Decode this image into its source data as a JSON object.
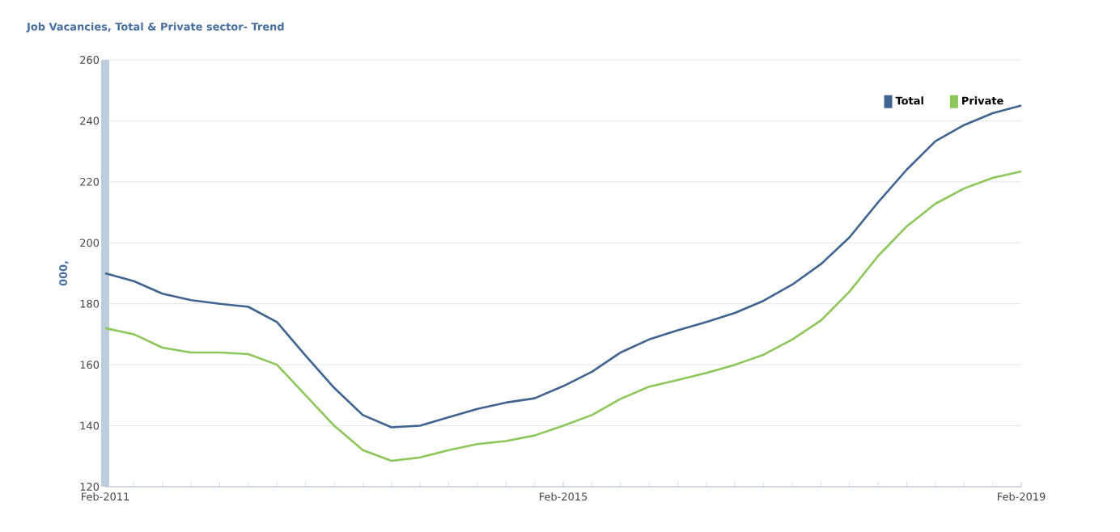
{
  "chart_data": {
    "type": "line",
    "title": "Job Vacancies, Total & Private sector- Trend",
    "ylabel": "000,",
    "categories": [
      "Feb-2011",
      null,
      null,
      null,
      null,
      null,
      null,
      null,
      null,
      null,
      null,
      null,
      null,
      null,
      null,
      null,
      "Feb-2015",
      null,
      null,
      null,
      null,
      null,
      null,
      null,
      null,
      null,
      null,
      null,
      null,
      null,
      null,
      null,
      "Feb-2019"
    ],
    "series": [
      {
        "name": "Total",
        "color": "#40648f",
        "values": [
          190,
          187.4,
          183.3,
          181.2,
          180,
          179,
          174,
          163,
          152.4,
          143.5,
          139.5,
          140,
          142.8,
          145.5,
          147.6,
          149,
          153,
          157.7,
          164,
          168.3,
          171.3,
          174,
          177,
          181,
          186.3,
          193,
          201.8,
          213.3,
          224,
          233.3,
          238.6,
          242.5,
          245
        ]
      },
      {
        "name": "Private",
        "color": "#8dc75b",
        "values": [
          172,
          170,
          165.6,
          164,
          164,
          163.5,
          160,
          150,
          140,
          132,
          128.5,
          129.6,
          132,
          134,
          135,
          136.8,
          140,
          143.5,
          148.8,
          152.8,
          155,
          157.3,
          160,
          163.3,
          168.3,
          174.5,
          184,
          195.7,
          205.4,
          212.8,
          217.8,
          221.3,
          223.4
        ]
      }
    ],
    "ylim": [
      120,
      260
    ],
    "yticks": [
      120,
      140,
      160,
      180,
      200,
      220,
      240,
      260
    ],
    "grid": "y",
    "legend": "top right",
    "marker": "none",
    "line_style": "solid"
  }
}
